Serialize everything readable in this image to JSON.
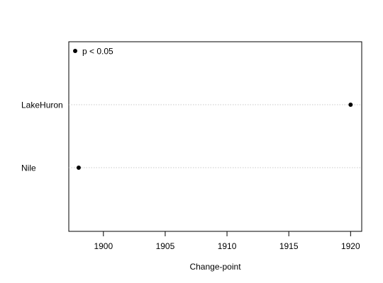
{
  "chart_data": {
    "type": "scatter",
    "title": "",
    "xlabel": "Change-point",
    "ylabel": "",
    "xlim": [
      1897.2,
      1920.9
    ],
    "x_ticks": [
      1900,
      1905,
      1910,
      1915,
      1920
    ],
    "categories": [
      "LakeHuron",
      "Nile"
    ],
    "points": [
      {
        "category": "LakeHuron",
        "x": 1920
      },
      {
        "category": "Nile",
        "x": 1898
      }
    ],
    "legend": {
      "label": "p < 0.05",
      "position": "top-left"
    },
    "grid": "horizontal dotted at each category",
    "colors": {
      "points": "#000000",
      "grid": "#c8c8c8",
      "axis": "#000000"
    }
  }
}
